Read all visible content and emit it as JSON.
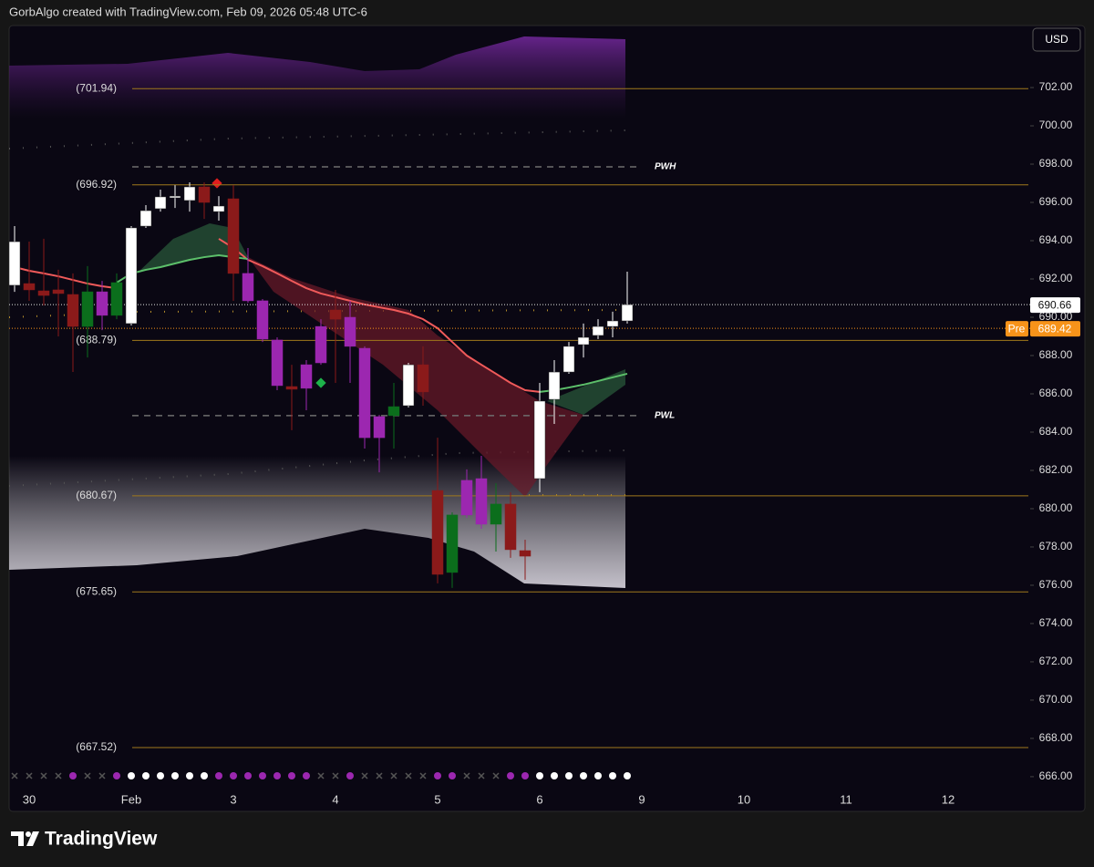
{
  "header": "GorbAlgo created with TradingView.com, Feb 09, 2026 05:48 UTC-6",
  "currency": "USD",
  "brand": "TradingView",
  "chart_data": {
    "type": "candlestick",
    "categories": [
      "30",
      "Feb",
      "3",
      "4",
      "5",
      "6",
      "9",
      "10",
      "11",
      "12"
    ],
    "candles": {
      "open": [
        691.67,
        691.76,
        691.38,
        691.43,
        691.19,
        689.52,
        690.1,
        690.1,
        689.67,
        694.76,
        695.67,
        696.24,
        696.1,
        696.81,
        695.52,
        696.19,
        692.29,
        690.86,
        688.81,
        686.38,
        686.29,
        687.62,
        690.38,
        690.0,
        688.38,
        683.71,
        684.86,
        685.38,
        687.52,
        680.95,
        676.67,
        679.67,
        681.57,
        679.19,
        680.24,
        677.81,
        681.57,
        685.71,
        687.14,
        688.57,
        689.05,
        689.52,
        689.81
      ],
      "high": [
        694.76,
        693.95,
        694.1,
        692.48,
        692.29,
        692.67,
        691.9,
        692.29,
        694.76,
        695.86,
        696.67,
        696.9,
        697.05,
        697.05,
        696.33,
        696.9,
        693.62,
        690.95,
        688.95,
        687.52,
        687.76,
        689.9,
        691.43,
        690.86,
        688.48,
        684.9,
        686.57,
        687.62,
        688.48,
        683.71,
        679.81,
        682.05,
        682.76,
        681.33,
        680.86,
        678.38,
        686.57,
        687.76,
        688.71,
        689.67,
        689.9,
        690.29,
        692.38
      ],
      "low": [
        691.33,
        690.86,
        690.62,
        689.0,
        687.14,
        687.9,
        689.33,
        689.9,
        689.57,
        694.67,
        695.52,
        695.71,
        695.52,
        695.14,
        695.05,
        690.86,
        690.76,
        688.71,
        686.19,
        684.1,
        685.14,
        687.52,
        686.57,
        686.57,
        683.14,
        681.9,
        683.14,
        685.29,
        685.38,
        676.1,
        675.86,
        679.52,
        678.95,
        677.76,
        677.43,
        676.29,
        680.86,
        684.43,
        687.05,
        687.9,
        688.86,
        688.95,
        689.67
      ],
      "close": [
        693.95,
        691.43,
        691.14,
        691.24,
        689.52,
        691.33,
        691.33,
        691.81,
        694.67,
        695.57,
        696.29,
        696.33,
        696.81,
        696.0,
        695.81,
        692.29,
        690.86,
        688.86,
        686.43,
        686.24,
        687.52,
        689.52,
        689.9,
        688.48,
        683.71,
        684.81,
        685.33,
        687.52,
        686.1,
        676.57,
        679.67,
        681.48,
        679.19,
        680.24,
        677.86,
        677.52,
        685.62,
        687.14,
        688.48,
        688.95,
        689.52,
        689.81,
        690.66
      ],
      "colors": [
        "#ffffff",
        "#8b1a1a",
        "#8b1a1a",
        "#8b1a1a",
        "#8b1a1a",
        "#0b6e1c",
        "#9c27b0",
        "#0b6e1c",
        "#ffffff",
        "#ffffff",
        "#ffffff",
        "#ffffff",
        "#ffffff",
        "#8b1a1a",
        "#ffffff",
        "#8b1a1a",
        "#9c27b0",
        "#9c27b0",
        "#9c27b0",
        "#8b1a1a",
        "#9c27b0",
        "#9c27b0",
        "#8b1a1a",
        "#9c27b0",
        "#9c27b0",
        "#9c27b0",
        "#0b6e1c",
        "#ffffff",
        "#8b1a1a",
        "#8b1a1a",
        "#0b6e1c",
        "#9c27b0",
        "#9c27b0",
        "#0b6e1c",
        "#8b1a1a",
        "#8b1a1a",
        "#ffffff",
        "#ffffff",
        "#ffffff",
        "#ffffff",
        "#ffffff",
        "#ffffff",
        "#ffffff"
      ]
    },
    "lines": [
      {
        "color": "#f05a5a",
        "values": [
          692.62,
          692.43,
          692.29,
          692.14,
          691.95,
          691.76,
          691.62,
          691.52,
          null,
          null,
          null,
          null,
          null,
          null,
          694.1,
          693.62,
          693.0,
          692.67,
          692.29,
          691.9,
          691.52,
          691.24,
          691.05,
          690.86,
          690.67,
          690.52,
          690.38,
          690.19,
          689.9,
          689.43,
          688.71,
          688.0,
          687.52,
          687.05,
          686.57,
          686.19,
          686.1,
          null,
          null,
          null,
          null,
          null,
          null
        ]
      },
      {
        "color": "#5cbf6a",
        "values": [
          null,
          null,
          null,
          null,
          null,
          null,
          null,
          691.81,
          692.29,
          692.48,
          692.62,
          692.81,
          693.0,
          693.14,
          693.24,
          693.14,
          693.05,
          null,
          null,
          null,
          null,
          null,
          null,
          null,
          null,
          null,
          null,
          null,
          null,
          null,
          null,
          null,
          null,
          null,
          null,
          null,
          686.1,
          686.19,
          686.33,
          686.48,
          686.67,
          686.86,
          687.05
        ]
      }
    ],
    "levels": [
      {
        "value": 701.94,
        "label": "(701.94)"
      },
      {
        "value": 696.92,
        "label": "(696.92)"
      },
      {
        "value": 688.79,
        "label": "(688.79)"
      },
      {
        "value": 680.67,
        "label": "(680.67)"
      },
      {
        "value": 675.65,
        "label": "(675.65)"
      },
      {
        "value": 667.52,
        "label": "(667.52)"
      }
    ],
    "level_color": "#a0791c",
    "markers": [
      {
        "value": 697.86,
        "label": "PWH"
      },
      {
        "value": 684.86,
        "label": "PWL"
      }
    ],
    "last_price": 690.66,
    "premarket": {
      "label": "Pre",
      "value": 689.42
    },
    "ylim": [
      665.33,
      705.24
    ],
    "yticks": [
      {
        "value": 666,
        "label": "666.00"
      },
      {
        "value": 668,
        "label": "668.00"
      },
      {
        "value": 670,
        "label": "670.00"
      },
      {
        "value": 672,
        "label": "672.00"
      },
      {
        "value": 674,
        "label": "674.00"
      },
      {
        "value": 676,
        "label": "676.00"
      },
      {
        "value": 678,
        "label": "678.00"
      },
      {
        "value": 680,
        "label": "680.00"
      },
      {
        "value": 682,
        "label": "682.00"
      },
      {
        "value": 684,
        "label": "684.00"
      },
      {
        "value": 686,
        "label": "686.00"
      },
      {
        "value": 688,
        "label": "688.00"
      },
      {
        "value": 690,
        "label": "690.00"
      },
      {
        "value": 692,
        "label": "692.00"
      },
      {
        "value": 694,
        "label": "694.00"
      },
      {
        "value": 696,
        "label": "696.00"
      },
      {
        "value": 698,
        "label": "698.00"
      },
      {
        "value": 700,
        "label": "700.00"
      },
      {
        "value": 702,
        "label": "702.00"
      }
    ]
  }
}
